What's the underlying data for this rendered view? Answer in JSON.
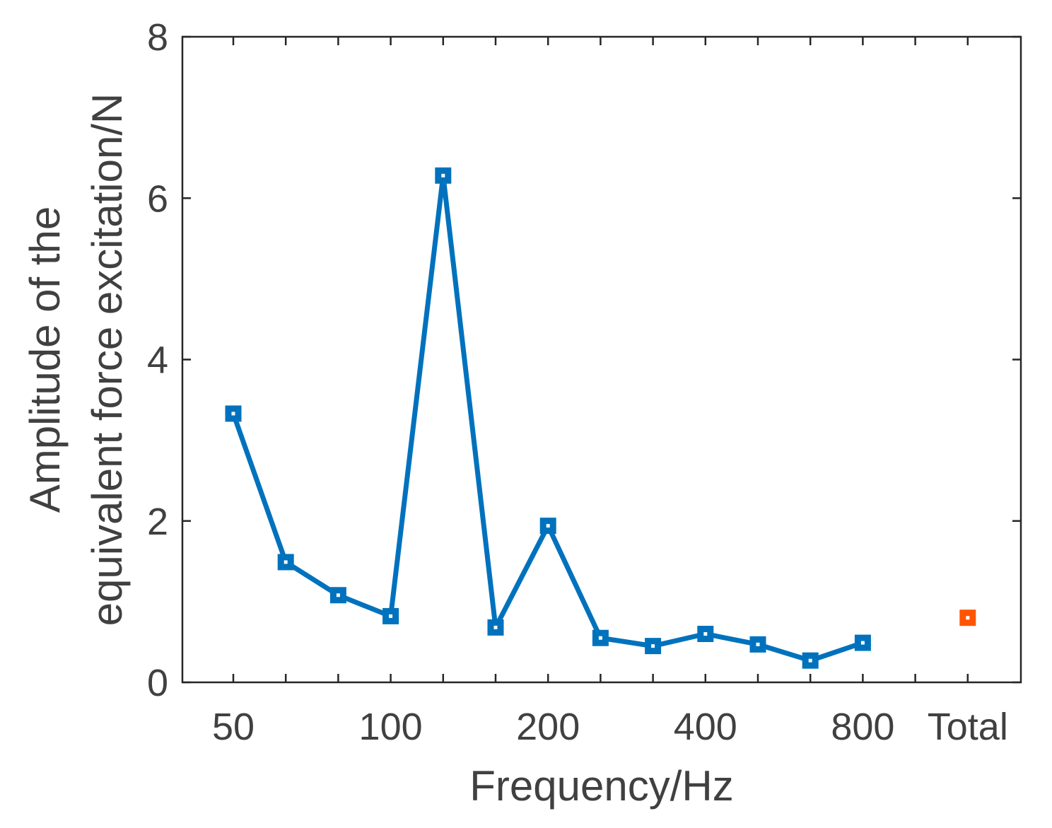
{
  "chart_data": {
    "type": "line",
    "title": "",
    "xlabel": "Frequency/Hz",
    "ylabel_lines": [
      "Amplitude of the",
      "equivalent force excitation/N"
    ],
    "ylim": [
      0,
      8
    ],
    "yticks": [
      0,
      2,
      4,
      6,
      8
    ],
    "x_positions": [
      "50",
      "63",
      "80",
      "100",
      "125",
      "160",
      "200",
      "250",
      "315",
      "400",
      "500",
      "630",
      "800",
      "1000",
      "Total"
    ],
    "xtick_labels": [
      {
        "at": "50",
        "label": "50"
      },
      {
        "at": "100",
        "label": "100"
      },
      {
        "at": "200",
        "label": "200"
      },
      {
        "at": "400",
        "label": "400"
      },
      {
        "at": "800",
        "label": "800"
      },
      {
        "at": "Total",
        "label": "Total"
      }
    ],
    "series": [
      {
        "color": "#0072BD",
        "marker": "square",
        "points": [
          {
            "x": "50",
            "y": 3.33
          },
          {
            "x": "63",
            "y": 1.49
          },
          {
            "x": "80",
            "y": 1.08
          },
          {
            "x": "100",
            "y": 0.82
          },
          {
            "x": "125",
            "y": 6.28
          },
          {
            "x": "160",
            "y": 0.68
          },
          {
            "x": "200",
            "y": 1.94
          },
          {
            "x": "250",
            "y": 0.55
          },
          {
            "x": "315",
            "y": 0.45
          },
          {
            "x": "400",
            "y": 0.6
          },
          {
            "x": "500",
            "y": 0.47
          },
          {
            "x": "630",
            "y": 0.27
          },
          {
            "x": "800",
            "y": 0.49
          }
        ]
      },
      {
        "color": "#FF5500",
        "marker": "square",
        "points": [
          {
            "x": "Total",
            "y": 0.8
          }
        ]
      }
    ],
    "grid": false,
    "box": true
  }
}
